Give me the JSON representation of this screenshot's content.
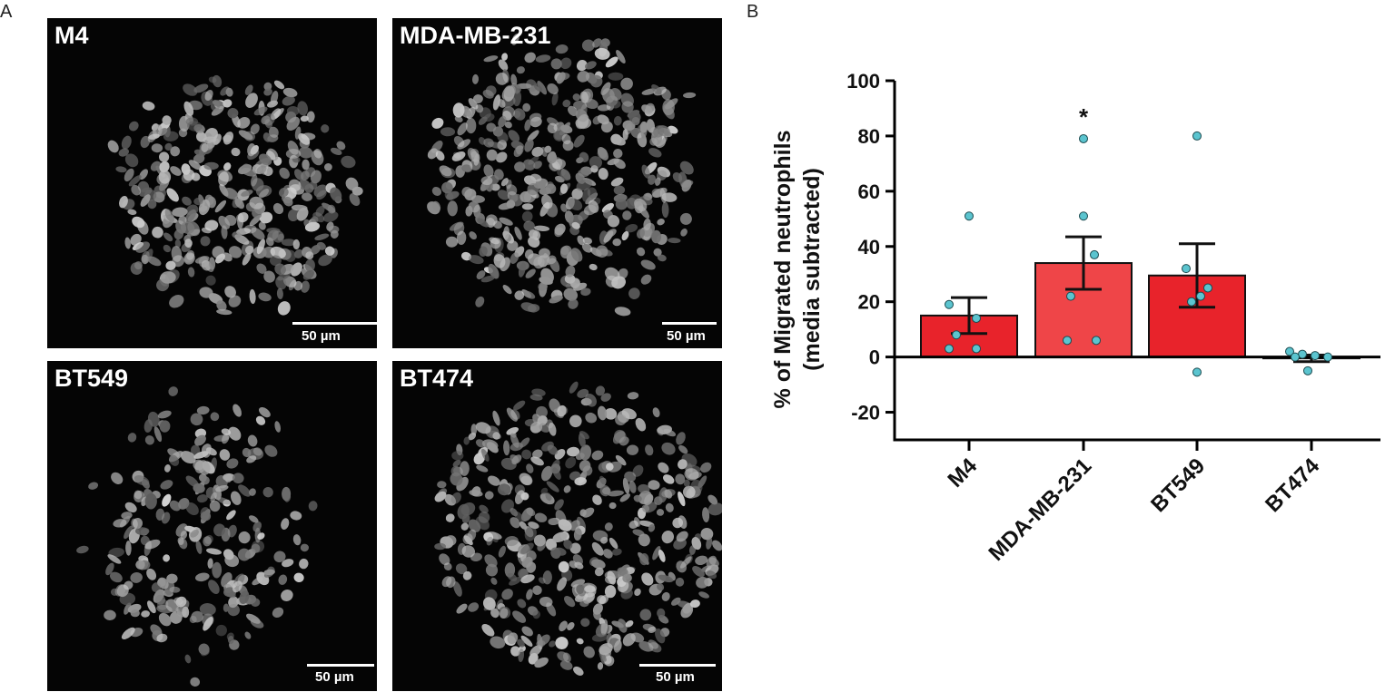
{
  "panels": {
    "a": "A",
    "b": "B"
  },
  "images": [
    {
      "label": "M4",
      "scalebar": "50 µm"
    },
    {
      "label": "MDA-MB-231",
      "scalebar": "50 µm"
    },
    {
      "label": "BT549",
      "scalebar": "50 µm"
    },
    {
      "label": "BT474",
      "scalebar": "50 µm"
    }
  ],
  "colors": {
    "bar": "#e8232b",
    "bar_light": "#ef4548",
    "dot": "#5bc4cf",
    "image_bg": "#050505"
  },
  "chart_data": {
    "type": "bar",
    "categories": [
      "M4",
      "MDA-MB-231",
      "BT549",
      "BT474"
    ],
    "values": [
      15,
      34,
      29.5,
      -0.5
    ],
    "error": [
      6.5,
      9.5,
      11.5,
      1.2
    ],
    "points": [
      [
        51,
        19,
        14,
        8,
        3,
        3
      ],
      [
        79,
        51,
        37,
        22,
        6,
        6
      ],
      [
        80,
        32,
        25,
        22,
        20,
        -5.5
      ],
      [
        2,
        1,
        0.5,
        0,
        0,
        -5
      ]
    ],
    "significance": [
      "",
      "*",
      "",
      ""
    ],
    "ylabel_line1": "% of Migrated neutrophils",
    "ylabel_line2": "(media subtracted)",
    "ylim": [
      -30,
      100
    ],
    "yticks": [
      -20,
      0,
      20,
      40,
      60,
      80,
      100
    ],
    "ytick_labels": [
      "-20",
      "0",
      "20",
      "40",
      "60",
      "80",
      "100"
    ]
  }
}
